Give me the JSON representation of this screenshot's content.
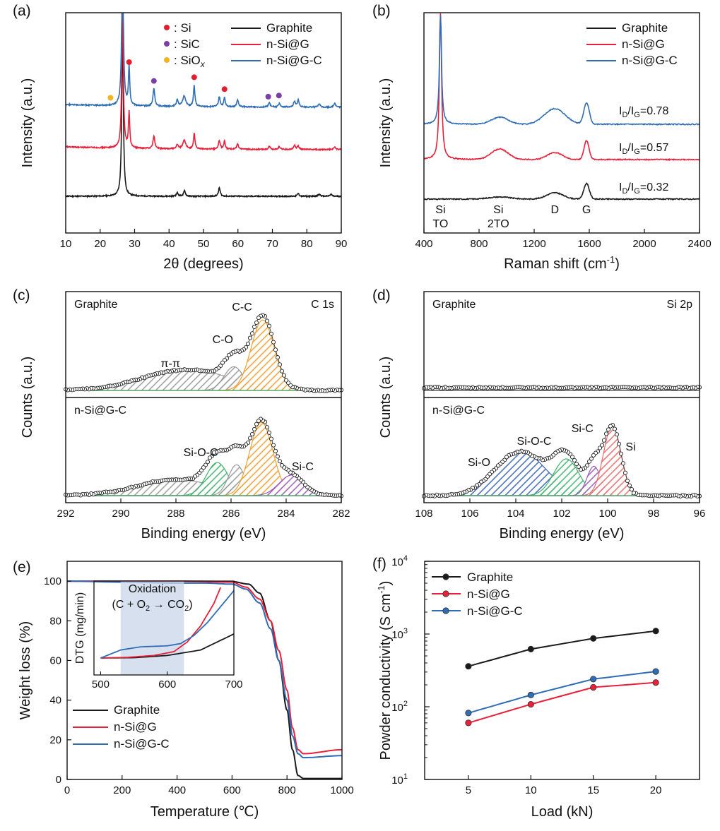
{
  "colors": {
    "graphite": "#1a1a1a",
    "nsig": "#e8203a",
    "nsigc": "#2f6db5",
    "si_dot": "#e02030",
    "sic_dot": "#7b3fa4",
    "siox_dot": "#f4b422",
    "orange": "#f0a030",
    "green": "#3fb36b",
    "purple": "#9a5ab8",
    "red": "#e86a6a",
    "blue": "#3a64b0",
    "gray": "#9a9a9a",
    "oxidation_band": "#c9d6ea"
  },
  "chart_data": [
    {
      "id": "a",
      "panel_label": "(a)",
      "type": "line",
      "xlabel": "2θ (degrees)",
      "ylabel": "Intensity (a.u.)",
      "xlim": [
        10,
        90
      ],
      "xticks": [
        "10",
        "20",
        "30",
        "40",
        "50",
        "60",
        "70",
        "80",
        "90"
      ],
      "legend": [
        "Graphite",
        "n-Si@G",
        "n-Si@G-C"
      ],
      "phase_legend": [
        {
          "label": ": Si",
          "color_key": "si_dot"
        },
        {
          "label": ": SiC",
          "color_key": "sic_dot"
        },
        {
          "label": ": SiO",
          "sub": "x",
          "color_key": "siox_dot"
        }
      ],
      "series": [
        {
          "name": "Graphite",
          "color_key": "graphite",
          "offset": 0,
          "peaks": [
            [
              26.5,
              260,
              0.25
            ],
            [
              42.4,
              5,
              0.3
            ],
            [
              44.5,
              8,
              0.3
            ],
            [
              54.6,
              12,
              0.3
            ],
            [
              77.5,
              4,
              0.3
            ],
            [
              83.6,
              3,
              0.3
            ],
            [
              87,
              3,
              0.3
            ]
          ]
        },
        {
          "name": "n-Si@G",
          "color_key": "nsig",
          "offset": 68,
          "peaks": [
            [
              26.5,
              220,
              0.25
            ],
            [
              28.4,
              50,
              0.22
            ],
            [
              35.6,
              18,
              0.3
            ],
            [
              42.4,
              6,
              0.3
            ],
            [
              44.4,
              12,
              0.5
            ],
            [
              47.3,
              22,
              0.25
            ],
            [
              54.6,
              12,
              0.3
            ],
            [
              56.1,
              12,
              0.25
            ],
            [
              59.9,
              7,
              0.3
            ],
            [
              69.1,
              5,
              0.3
            ],
            [
              72,
              4,
              0.3
            ],
            [
              76.4,
              6,
              0.3
            ],
            [
              77.5,
              5,
              0.3
            ],
            [
              88.1,
              4,
              0.3
            ]
          ]
        },
        {
          "name": "n-Si@G-C",
          "color_key": "nsigc",
          "offset": 138,
          "peaks": [
            [
              26.5,
              260,
              0.25
            ],
            [
              28.4,
              55,
              0.22
            ],
            [
              35.6,
              25,
              0.3
            ],
            [
              42.4,
              10,
              0.3
            ],
            [
              44.4,
              15,
              0.5
            ],
            [
              47.3,
              30,
              0.25
            ],
            [
              54.6,
              14,
              0.3
            ],
            [
              56.1,
              13,
              0.25
            ],
            [
              59.9,
              10,
              0.3
            ],
            [
              69.1,
              6,
              0.3
            ],
            [
              72,
              5,
              0.3
            ],
            [
              76.4,
              8,
              0.3
            ],
            [
              77.5,
              10,
              0.3
            ],
            [
              83.6,
              5,
              0.3
            ],
            [
              88.1,
              6,
              0.3
            ]
          ]
        }
      ],
      "markers": [
        {
          "x": 23.0,
          "color_key": "siox_dot"
        },
        {
          "x": 28.4,
          "color_key": "si_dot"
        },
        {
          "x": 35.6,
          "color_key": "sic_dot"
        },
        {
          "x": 47.3,
          "color_key": "si_dot"
        },
        {
          "x": 56.1,
          "color_key": "si_dot"
        },
        {
          "x": 68.8,
          "color_key": "sic_dot"
        },
        {
          "x": 71.9,
          "color_key": "sic_dot"
        }
      ]
    },
    {
      "id": "b",
      "panel_label": "(b)",
      "type": "line",
      "xlabel": "Raman shift (cm",
      "xlabel_sup": "-1",
      "xlabel_end": ")",
      "ylabel": "Intensity (a.u.)",
      "xlim": [
        400,
        2400
      ],
      "xticks": [
        "400",
        "800",
        "1200",
        "1600",
        "2000",
        "2400"
      ],
      "legend": [
        "Graphite",
        "n-Si@G",
        "n-Si@G-C"
      ],
      "series": [
        {
          "name": "Graphite",
          "color_key": "graphite",
          "ratio": "0.32",
          "peaks": [
            [
              520,
              0,
              12
            ],
            [
              950,
              3,
              80
            ],
            [
              1350,
              9,
              60
            ],
            [
              1580,
              22,
              20
            ]
          ]
        },
        {
          "name": "n-Si@G",
          "color_key": "nsig",
          "ratio": "0.57",
          "peaks": [
            [
              520,
              220,
              9
            ],
            [
              950,
              15,
              60
            ],
            [
              1350,
              10,
              55
            ],
            [
              1580,
              27,
              18
            ]
          ]
        },
        {
          "name": "n-Si@G-C",
          "color_key": "nsigc",
          "ratio": "0.78",
          "peaks": [
            [
              520,
              155,
              9
            ],
            [
              950,
              10,
              60
            ],
            [
              1350,
              22,
              75
            ],
            [
              1580,
              30,
              20
            ]
          ]
        }
      ],
      "band_labels": [
        {
          "x": 520,
          "lines": [
            "Si",
            "TO"
          ]
        },
        {
          "x": 940,
          "lines": [
            "Si",
            "2TO"
          ]
        },
        {
          "x": 1350,
          "lines": [
            "D"
          ]
        },
        {
          "x": 1580,
          "lines": [
            "G"
          ]
        }
      ],
      "ratio_label": {
        "pre": "I",
        "d": "D",
        "slash": "/I",
        "g": "G",
        "eq": "="
      }
    },
    {
      "id": "c",
      "panel_label": "(c)",
      "type": "line",
      "xlabel": "Binding energy (eV)",
      "ylabel": "Counts (a.u.)",
      "xlim": [
        292,
        282
      ],
      "xticks": [
        "292",
        "290",
        "288",
        "286",
        "284",
        "282"
      ],
      "subplots": [
        {
          "sample": "Graphite",
          "region": "C 1s",
          "components": [
            {
              "label": "π-π",
              "center": 287.6,
              "height": 0.28,
              "width": 1.6,
              "color_key": "gray"
            },
            {
              "label": "C-O",
              "center": 285.9,
              "height": 0.32,
              "width": 0.35,
              "color_key": "gray"
            },
            {
              "label": "C-C",
              "center": 284.85,
              "height": 0.95,
              "width": 0.42,
              "color_key": "orange"
            }
          ]
        },
        {
          "sample": "n-Si@G-C",
          "region": "",
          "components": [
            {
              "label": "",
              "center": 288.0,
              "height": 0.22,
              "width": 1.4,
              "color_key": "gray"
            },
            {
              "label": "Si-O-C",
              "center": 286.5,
              "height": 0.45,
              "width": 0.4,
              "color_key": "green"
            },
            {
              "label": "",
              "center": 285.8,
              "height": 0.42,
              "width": 0.3,
              "color_key": "gray"
            },
            {
              "label": "",
              "center": 284.9,
              "height": 1.0,
              "width": 0.42,
              "color_key": "orange"
            },
            {
              "label": "Si-C",
              "center": 283.8,
              "height": 0.28,
              "width": 0.45,
              "color_key": "purple"
            }
          ]
        }
      ]
    },
    {
      "id": "d",
      "panel_label": "(d)",
      "type": "line",
      "xlabel": "Binding energy (eV)",
      "ylabel": "Counts (a.u.)",
      "xlim": [
        108,
        96
      ],
      "xticks": [
        "108",
        "106",
        "104",
        "102",
        "100",
        "98",
        "96"
      ],
      "subplots": [
        {
          "sample": "Graphite",
          "region": "Si 2p",
          "components": []
        },
        {
          "sample": "n-Si@G-C",
          "region": "",
          "components": [
            {
              "label": "Si-O",
              "center": 103.8,
              "height": 0.6,
              "width": 1.1,
              "color_key": "blue"
            },
            {
              "label": "Si-O-C",
              "center": 101.8,
              "height": 0.5,
              "width": 0.55,
              "color_key": "green"
            },
            {
              "label": "Si-C",
              "center": 100.6,
              "height": 0.4,
              "width": 0.3,
              "color_key": "purple"
            },
            {
              "label": "Si",
              "center": 99.8,
              "height": 0.95,
              "width": 0.38,
              "color_key": "red"
            }
          ]
        }
      ]
    },
    {
      "id": "e",
      "panel_label": "(e)",
      "type": "line",
      "xlabel": "Temperature (℃)",
      "ylabel": "Weight loss (%)",
      "xlim": [
        0,
        1000
      ],
      "ylim": [
        0,
        110
      ],
      "xticks": [
        "0",
        "200",
        "400",
        "600",
        "800",
        "1000"
      ],
      "yticks": [
        "0",
        "20",
        "40",
        "60",
        "80",
        "100"
      ],
      "legend": [
        "Graphite",
        "n-Si@G",
        "n-Si@G-C"
      ],
      "series": [
        {
          "name": "Graphite",
          "color_key": "graphite",
          "x": [
            0,
            200,
            400,
            600,
            660,
            700,
            740,
            770,
            800,
            820,
            840,
            860,
            1000
          ],
          "y": [
            100,
            100,
            100,
            99.8,
            98.5,
            94,
            80,
            60,
            35,
            15,
            2,
            0.5,
            0.5
          ]
        },
        {
          "name": "n-Si@G",
          "color_key": "nsig",
          "x": [
            0,
            200,
            400,
            600,
            650,
            700,
            740,
            770,
            800,
            820,
            840,
            860,
            1000
          ],
          "y": [
            100,
            100,
            100,
            99.5,
            97,
            91,
            80,
            65,
            45,
            26,
            15,
            13,
            15
          ]
        },
        {
          "name": "n-Si@G-C",
          "color_key": "nsigc",
          "x": [
            0,
            200,
            400,
            500,
            600,
            650,
            700,
            740,
            770,
            800,
            820,
            840,
            860,
            1000
          ],
          "y": [
            100,
            99.5,
            99,
            99,
            98.5,
            96,
            89,
            76,
            60,
            40,
            22,
            13,
            11,
            12
          ]
        }
      ],
      "inset": {
        "ylabel": "DTG (mg/min)",
        "xlim": [
          490,
          700
        ],
        "xticks": [
          "500",
          "600",
          "700"
        ],
        "band": [
          530,
          625
        ],
        "band_title": "Oxidation",
        "band_eq": {
          "a": "(C + O",
          "b": "2",
          "c": " → CO",
          "d": "2",
          "e": ")"
        },
        "series": [
          {
            "name": "Graphite",
            "color_key": "graphite",
            "x": [
              500,
              550,
              600,
              650,
              700
            ],
            "y": [
              0,
              0.1,
              0.8,
              2.5,
              7.5
            ]
          },
          {
            "name": "n-Si@G",
            "color_key": "nsig",
            "x": [
              500,
              540,
              580,
              610,
              630,
              650,
              670,
              680
            ],
            "y": [
              0,
              0.2,
              0.8,
              2,
              5,
              10,
              17,
              22
            ]
          },
          {
            "name": "n-Si@G-C",
            "color_key": "nsigc",
            "x": [
              500,
              530,
              560,
              600,
              620,
              640,
              660,
              680,
              700
            ],
            "y": [
              0,
              2.5,
              3.5,
              3.8,
              4.5,
              7,
              11,
              16,
              21
            ]
          }
        ]
      }
    },
    {
      "id": "f",
      "panel_label": "(f)",
      "type": "line",
      "scale": "log",
      "xlabel": "Load (kN)",
      "ylabel": "Powder conductivity (S cm",
      "ylabel_sup": "-1",
      "ylabel_end": ")",
      "xlim": [
        1.5,
        23.5
      ],
      "ylim_exp": [
        1,
        4
      ],
      "xticks": [
        "5",
        "10",
        "15",
        "20"
      ],
      "yticks": [
        {
          "base": "10",
          "exp": "1"
        },
        {
          "base": "10",
          "exp": "2"
        },
        {
          "base": "10",
          "exp": "3"
        },
        {
          "base": "10",
          "exp": "4"
        }
      ],
      "legend": [
        "Graphite",
        "n-Si@G",
        "n-Si@G-C"
      ],
      "series": [
        {
          "name": "Graphite",
          "color_key": "graphite",
          "x": [
            5,
            10,
            15,
            20
          ],
          "y": [
            360,
            620,
            870,
            1100
          ]
        },
        {
          "name": "n-Si@G",
          "color_key": "nsig",
          "x": [
            5,
            10,
            15,
            20
          ],
          "y": [
            60,
            108,
            185,
            215
          ]
        },
        {
          "name": "n-Si@G-C",
          "color_key": "nsigc",
          "x": [
            5,
            10,
            15,
            20
          ],
          "y": [
            82,
            145,
            240,
            305
          ]
        }
      ]
    }
  ]
}
